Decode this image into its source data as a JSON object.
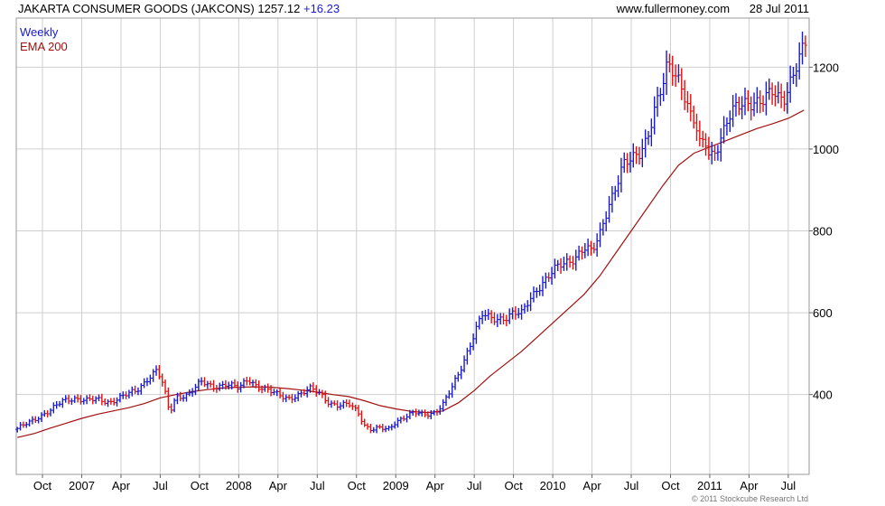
{
  "header": {
    "title": "JAKARTA CONSUMER GOODS (JAKCONS)",
    "last": "1257.12",
    "change": "+16.23",
    "site": "www.fullermoney.com",
    "date": "28 Jul 2011"
  },
  "legend": {
    "weekly": "Weekly",
    "ema": "EMA 200"
  },
  "copyright": "© 2011 Stockcube Research Ltd",
  "colors": {
    "up": "#1a1ad0",
    "down": "#e01010",
    "ema": "#a01010",
    "grid": "#cfcfcf",
    "weekly_text": "#1a1ad0",
    "ema_text": "#a01010"
  },
  "chart_data": {
    "type": "line",
    "title": "JAKARTA CONSUMER GOODS (JAKCONS)",
    "ylim": [
      205,
      1320
    ],
    "yticks": [
      400,
      600,
      800,
      1000,
      1200
    ],
    "ytick_labels": [
      "400",
      "600",
      "800",
      "1000",
      "1200"
    ],
    "x_range": [
      2006.583,
      2011.633
    ],
    "xticks": [
      {
        "t": 2006.75,
        "label": "Oct"
      },
      {
        "t": 2007.0,
        "label": "2007"
      },
      {
        "t": 2007.25,
        "label": "Apr"
      },
      {
        "t": 2007.5,
        "label": "Jul"
      },
      {
        "t": 2007.75,
        "label": "Oct"
      },
      {
        "t": 2008.0,
        "label": "2008"
      },
      {
        "t": 2008.25,
        "label": "Apr"
      },
      {
        "t": 2008.5,
        "label": "Jul"
      },
      {
        "t": 2008.75,
        "label": "Oct"
      },
      {
        "t": 2009.0,
        "label": "2009"
      },
      {
        "t": 2009.25,
        "label": "Apr"
      },
      {
        "t": 2009.5,
        "label": "Jul"
      },
      {
        "t": 2009.75,
        "label": "Oct"
      },
      {
        "t": 2010.0,
        "label": "2010"
      },
      {
        "t": 2010.25,
        "label": "Apr"
      },
      {
        "t": 2010.5,
        "label": "Jul"
      },
      {
        "t": 2010.75,
        "label": "Oct"
      },
      {
        "t": 2011.0,
        "label": "2011"
      },
      {
        "t": 2011.25,
        "label": "Apr"
      },
      {
        "t": 2011.5,
        "label": "Jul"
      }
    ],
    "series": [
      {
        "name": "Weekly",
        "points": [
          [
            2006.59,
            315
          ],
          [
            2006.65,
            330
          ],
          [
            2006.72,
            345
          ],
          [
            2006.8,
            360
          ],
          [
            2006.88,
            385
          ],
          [
            2006.95,
            392
          ],
          [
            2007.03,
            385
          ],
          [
            2007.1,
            388
          ],
          [
            2007.18,
            382
          ],
          [
            2007.26,
            395
          ],
          [
            2007.35,
            410
          ],
          [
            2007.42,
            440
          ],
          [
            2007.48,
            460
          ],
          [
            2007.52,
            420
          ],
          [
            2007.56,
            355
          ],
          [
            2007.6,
            395
          ],
          [
            2007.68,
            400
          ],
          [
            2007.76,
            430
          ],
          [
            2007.84,
            420
          ],
          [
            2007.92,
            425
          ],
          [
            2008.0,
            415
          ],
          [
            2008.06,
            440
          ],
          [
            2008.12,
            420
          ],
          [
            2008.18,
            410
          ],
          [
            2008.25,
            400
          ],
          [
            2008.32,
            392
          ],
          [
            2008.4,
            400
          ],
          [
            2008.46,
            415
          ],
          [
            2008.52,
            405
          ],
          [
            2008.58,
            378
          ],
          [
            2008.64,
            370
          ],
          [
            2008.7,
            378
          ],
          [
            2008.76,
            360
          ],
          [
            2008.8,
            325
          ],
          [
            2008.85,
            312
          ],
          [
            2008.9,
            318
          ],
          [
            2008.95,
            315
          ],
          [
            2009.0,
            335
          ],
          [
            2009.06,
            345
          ],
          [
            2009.12,
            355
          ],
          [
            2009.18,
            352
          ],
          [
            2009.25,
            357
          ],
          [
            2009.3,
            375
          ],
          [
            2009.35,
            410
          ],
          [
            2009.4,
            450
          ],
          [
            2009.45,
            500
          ],
          [
            2009.5,
            550
          ],
          [
            2009.55,
            595
          ],
          [
            2009.6,
            585
          ],
          [
            2009.65,
            585
          ],
          [
            2009.7,
            590
          ],
          [
            2009.75,
            600
          ],
          [
            2009.8,
            595
          ],
          [
            2009.85,
            630
          ],
          [
            2009.9,
            660
          ],
          [
            2009.95,
            680
          ],
          [
            2010.0,
            700
          ],
          [
            2010.05,
            715
          ],
          [
            2010.1,
            725
          ],
          [
            2010.15,
            740
          ],
          [
            2010.2,
            760
          ],
          [
            2010.25,
            745
          ],
          [
            2010.3,
            790
          ],
          [
            2010.35,
            860
          ],
          [
            2010.4,
            910
          ],
          [
            2010.45,
            960
          ],
          [
            2010.5,
            970
          ],
          [
            2010.55,
            990
          ],
          [
            2010.6,
            1030
          ],
          [
            2010.65,
            1100
          ],
          [
            2010.7,
            1150
          ],
          [
            2010.73,
            1200
          ],
          [
            2010.77,
            1190
          ],
          [
            2010.81,
            1170
          ],
          [
            2010.85,
            1125
          ],
          [
            2010.88,
            1080
          ],
          [
            2010.91,
            1060
          ],
          [
            2010.94,
            1000
          ],
          [
            2010.97,
            1020
          ],
          [
            2011.0,
            980
          ],
          [
            2011.03,
            995
          ],
          [
            2011.06,
            1020
          ],
          [
            2011.11,
            1070
          ],
          [
            2011.16,
            1095
          ],
          [
            2011.22,
            1110
          ],
          [
            2011.28,
            1120
          ],
          [
            2011.34,
            1120
          ],
          [
            2011.4,
            1135
          ],
          [
            2011.44,
            1120
          ],
          [
            2011.48,
            1130
          ],
          [
            2011.52,
            1180
          ],
          [
            2011.56,
            1215
          ],
          [
            2011.59,
            1240
          ],
          [
            2011.61,
            1255
          ]
        ]
      },
      {
        "name": "EMA 200",
        "points": [
          [
            2006.59,
            295
          ],
          [
            2006.7,
            305
          ],
          [
            2006.8,
            318
          ],
          [
            2006.9,
            330
          ],
          [
            2007.0,
            342
          ],
          [
            2007.1,
            352
          ],
          [
            2007.2,
            360
          ],
          [
            2007.3,
            368
          ],
          [
            2007.4,
            378
          ],
          [
            2007.5,
            392
          ],
          [
            2007.6,
            400
          ],
          [
            2007.7,
            407
          ],
          [
            2007.8,
            412
          ],
          [
            2007.9,
            416
          ],
          [
            2008.0,
            418
          ],
          [
            2008.1,
            419
          ],
          [
            2008.2,
            418
          ],
          [
            2008.3,
            415
          ],
          [
            2008.4,
            411
          ],
          [
            2008.5,
            406
          ],
          [
            2008.6,
            400
          ],
          [
            2008.7,
            395
          ],
          [
            2008.8,
            385
          ],
          [
            2008.9,
            373
          ],
          [
            2009.0,
            365
          ],
          [
            2009.1,
            359
          ],
          [
            2009.2,
            356
          ],
          [
            2009.3,
            360
          ],
          [
            2009.4,
            380
          ],
          [
            2009.5,
            410
          ],
          [
            2009.6,
            445
          ],
          [
            2009.7,
            475
          ],
          [
            2009.8,
            505
          ],
          [
            2009.9,
            540
          ],
          [
            2010.0,
            575
          ],
          [
            2010.1,
            610
          ],
          [
            2010.2,
            645
          ],
          [
            2010.3,
            690
          ],
          [
            2010.4,
            745
          ],
          [
            2010.5,
            800
          ],
          [
            2010.6,
            855
          ],
          [
            2010.7,
            910
          ],
          [
            2010.8,
            960
          ],
          [
            2010.9,
            990
          ],
          [
            2011.0,
            1005
          ],
          [
            2011.1,
            1020
          ],
          [
            2011.2,
            1035
          ],
          [
            2011.3,
            1050
          ],
          [
            2011.4,
            1062
          ],
          [
            2011.5,
            1075
          ],
          [
            2011.6,
            1095
          ]
        ]
      }
    ]
  }
}
